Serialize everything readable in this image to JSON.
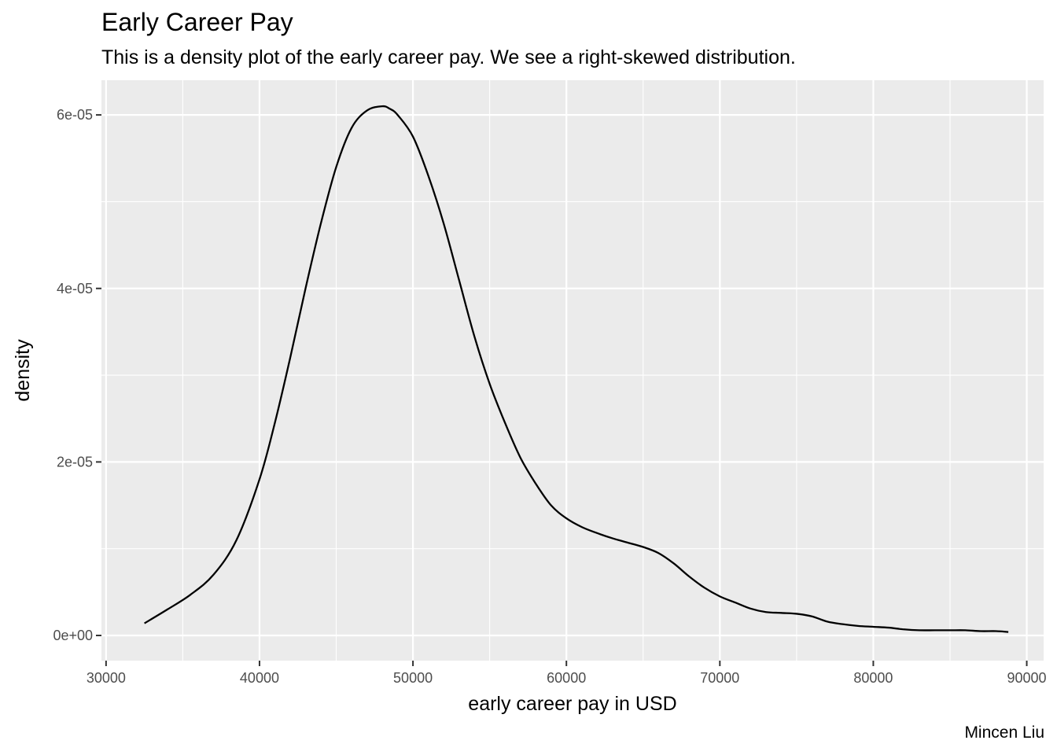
{
  "chart_data": {
    "type": "area",
    "title": "Early Career Pay",
    "subtitle": "This is a density plot of the early career pay. We see a right-skewed distribution.",
    "caption": "Mincen Liu",
    "xlabel": "early career pay in USD",
    "ylabel": "density",
    "xlim": [
      29700,
      91100
    ],
    "ylim": [
      -2.9e-06,
      6.4e-05
    ],
    "x_ticks": [
      30000,
      40000,
      50000,
      60000,
      70000,
      80000,
      90000
    ],
    "x_tick_labels": [
      "30000",
      "40000",
      "50000",
      "60000",
      "70000",
      "80000",
      "90000"
    ],
    "y_ticks": [
      0,
      2e-05,
      4e-05,
      6e-05
    ],
    "y_tick_labels": [
      "0e+00",
      "2e-05",
      "4e-05",
      "6e-05"
    ],
    "grid": true,
    "panel_background": "#ebebeb",
    "line_color": "#000000",
    "series": [
      {
        "x": [
          32500,
          34000,
          35500,
          37000,
          38500,
          40000,
          41000,
          42000,
          43000,
          44000,
          45000,
          46000,
          47000,
          48000,
          48500,
          49000,
          50000,
          51000,
          52000,
          53000,
          54000,
          55000,
          56000,
          57000,
          58000,
          59000,
          60000,
          61000,
          62000,
          63000,
          64000,
          65000,
          66000,
          67000,
          68000,
          69000,
          70000,
          71000,
          72000,
          73000,
          74000,
          75000,
          76000,
          77000,
          78000,
          79000,
          80000,
          81000,
          82000,
          83000,
          84000,
          85000,
          86000,
          87000,
          88000,
          88800
        ],
        "y": [
          1.4e-06,
          3e-06,
          4.7e-06,
          7e-06,
          1.1e-05,
          1.8e-05,
          2.45e-05,
          3.2e-05,
          4e-05,
          4.75e-05,
          5.4e-05,
          5.85e-05,
          6.05e-05,
          6.1e-05,
          6.07e-05,
          6e-05,
          5.75e-05,
          5.3e-05,
          4.75e-05,
          4.1e-05,
          3.45e-05,
          2.9e-05,
          2.45e-05,
          2.05e-05,
          1.75e-05,
          1.5e-05,
          1.35e-05,
          1.25e-05,
          1.18e-05,
          1.12e-05,
          1.07e-05,
          1.02e-05,
          9.5e-06,
          8.3e-06,
          6.8e-06,
          5.5e-06,
          4.5e-06,
          3.8e-06,
          3.1e-06,
          2.7e-06,
          2.6e-06,
          2.5e-06,
          2.2e-06,
          1.6e-06,
          1.3e-06,
          1.1e-06,
          1e-06,
          9e-07,
          7e-07,
          6e-07,
          6e-07,
          6e-07,
          6e-07,
          5e-07,
          5e-07,
          4e-07
        ]
      }
    ]
  }
}
